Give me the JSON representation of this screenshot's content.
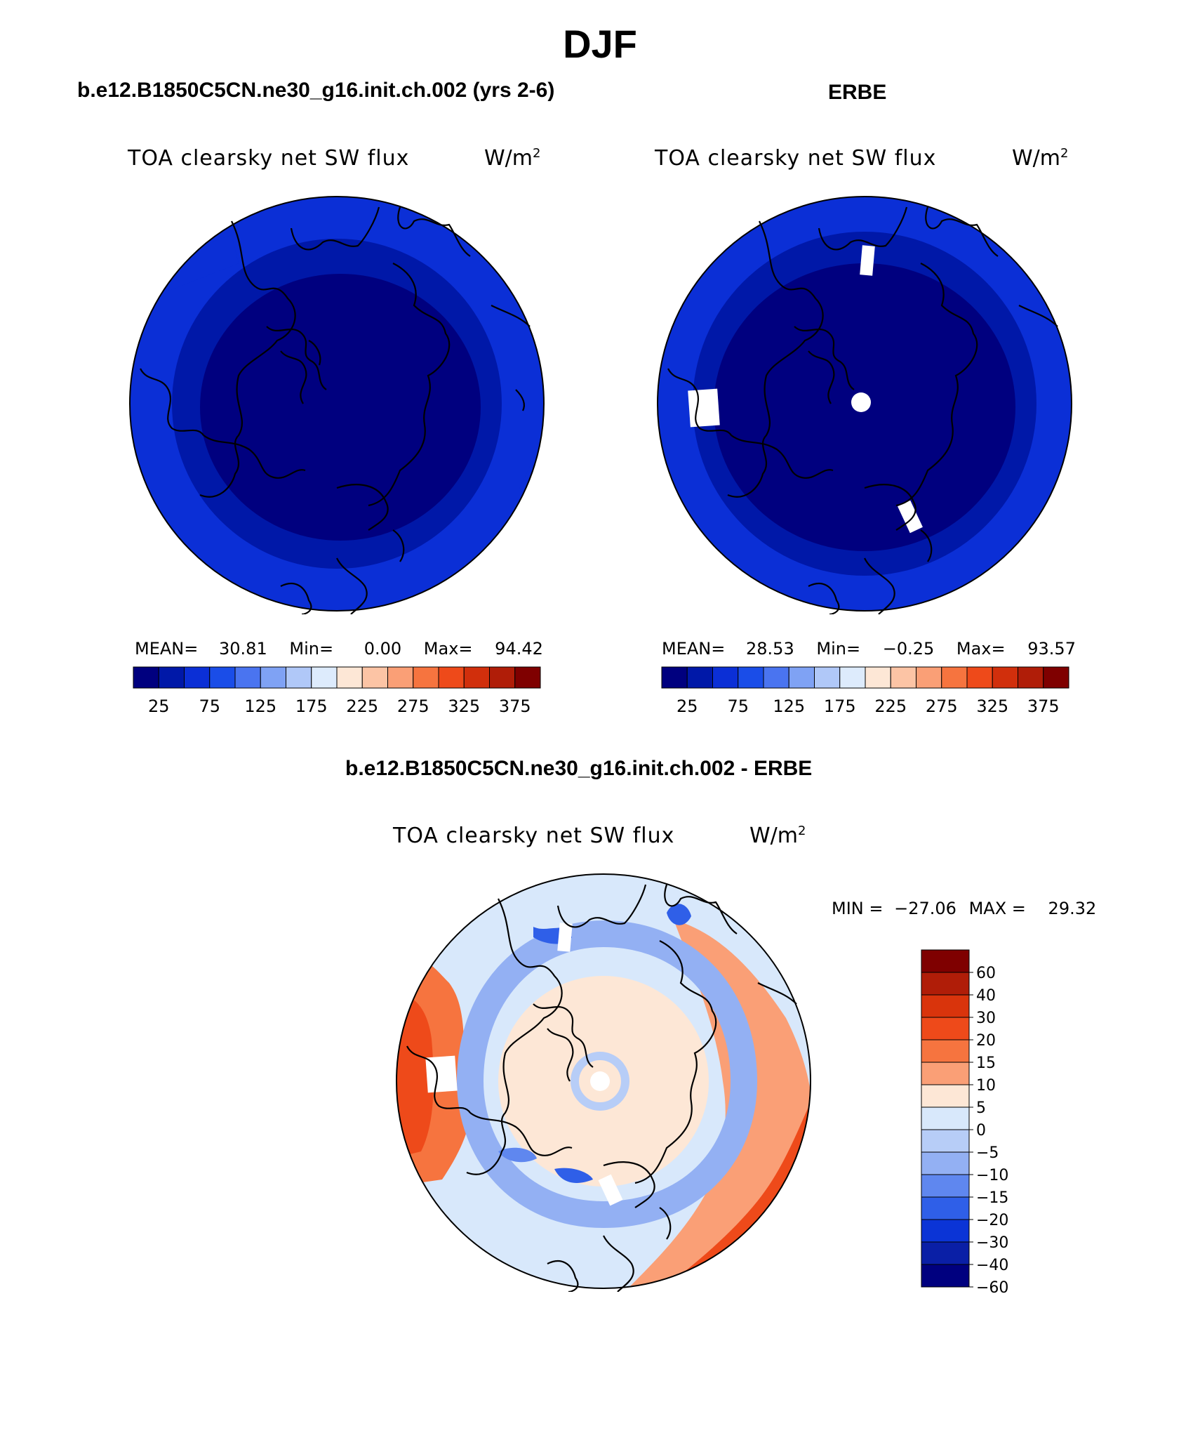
{
  "title": "DJF",
  "panels": [
    {
      "id": "model",
      "case": "b.e12.B1850C5CN.ne30_g16.init.ch.002 (yrs 2-6)",
      "variable": "TOA clearsky net SW flux",
      "units": "W/m",
      "units_exp": "2",
      "stats": {
        "mean_label": "MEAN=",
        "mean": "30.81",
        "min_label": "Min=",
        "min": "0.00",
        "max_label": "Max=",
        "max": "94.42"
      },
      "colorbar_labels": [
        "25",
        "75",
        "125",
        "175",
        "225",
        "275",
        "325",
        "375"
      ]
    },
    {
      "id": "obs",
      "case": "ERBE",
      "variable": "TOA clearsky net SW flux",
      "units": "W/m",
      "units_exp": "2",
      "stats": {
        "mean_label": "MEAN=",
        "mean": "28.53",
        "min_label": "Min=",
        "min": "−0.25",
        "max_label": "Max=",
        "max": "93.57"
      },
      "colorbar_labels": [
        "25",
        "75",
        "125",
        "175",
        "225",
        "275",
        "325",
        "375"
      ]
    }
  ],
  "diff_panel": {
    "case": "b.e12.B1850C5CN.ne30_g16.init.ch.002 - ERBE",
    "variable": "TOA clearsky net SW flux",
    "units": "W/m",
    "units_exp": "2",
    "min_label": "MIN =",
    "min": "−27.06",
    "max_label": "MAX =",
    "max": "29.32",
    "colorbar_labels": [
      "60",
      "40",
      "30",
      "20",
      "15",
      "10",
      "5",
      "0",
      "−5",
      "−10",
      "−15",
      "−20",
      "−30",
      "−40",
      "−60"
    ]
  },
  "colors": {
    "field_palette": [
      "#00007f",
      "#0018a8",
      "#0b2fd6",
      "#1a4de8",
      "#4a74f0",
      "#7fa2f4",
      "#b0c8f8",
      "#ddebfc",
      "#fde7d6",
      "#fcc4a5",
      "#fa9f76",
      "#f6743f",
      "#ee4a1a",
      "#d12f0c",
      "#b01d08",
      "#7f0000"
    ],
    "diff_palette": [
      "#7f0000",
      "#b01d08",
      "#d9340c",
      "#ee4a1a",
      "#f6743f",
      "#fa9f76",
      "#fde7d6",
      "#d8e8fb",
      "#b7cdf7",
      "#93b0f3",
      "#5f87ef",
      "#2f5fe8",
      "#0b34d6",
      "#0a1fa6",
      "#00007f"
    ],
    "land_outline": "#000000"
  }
}
